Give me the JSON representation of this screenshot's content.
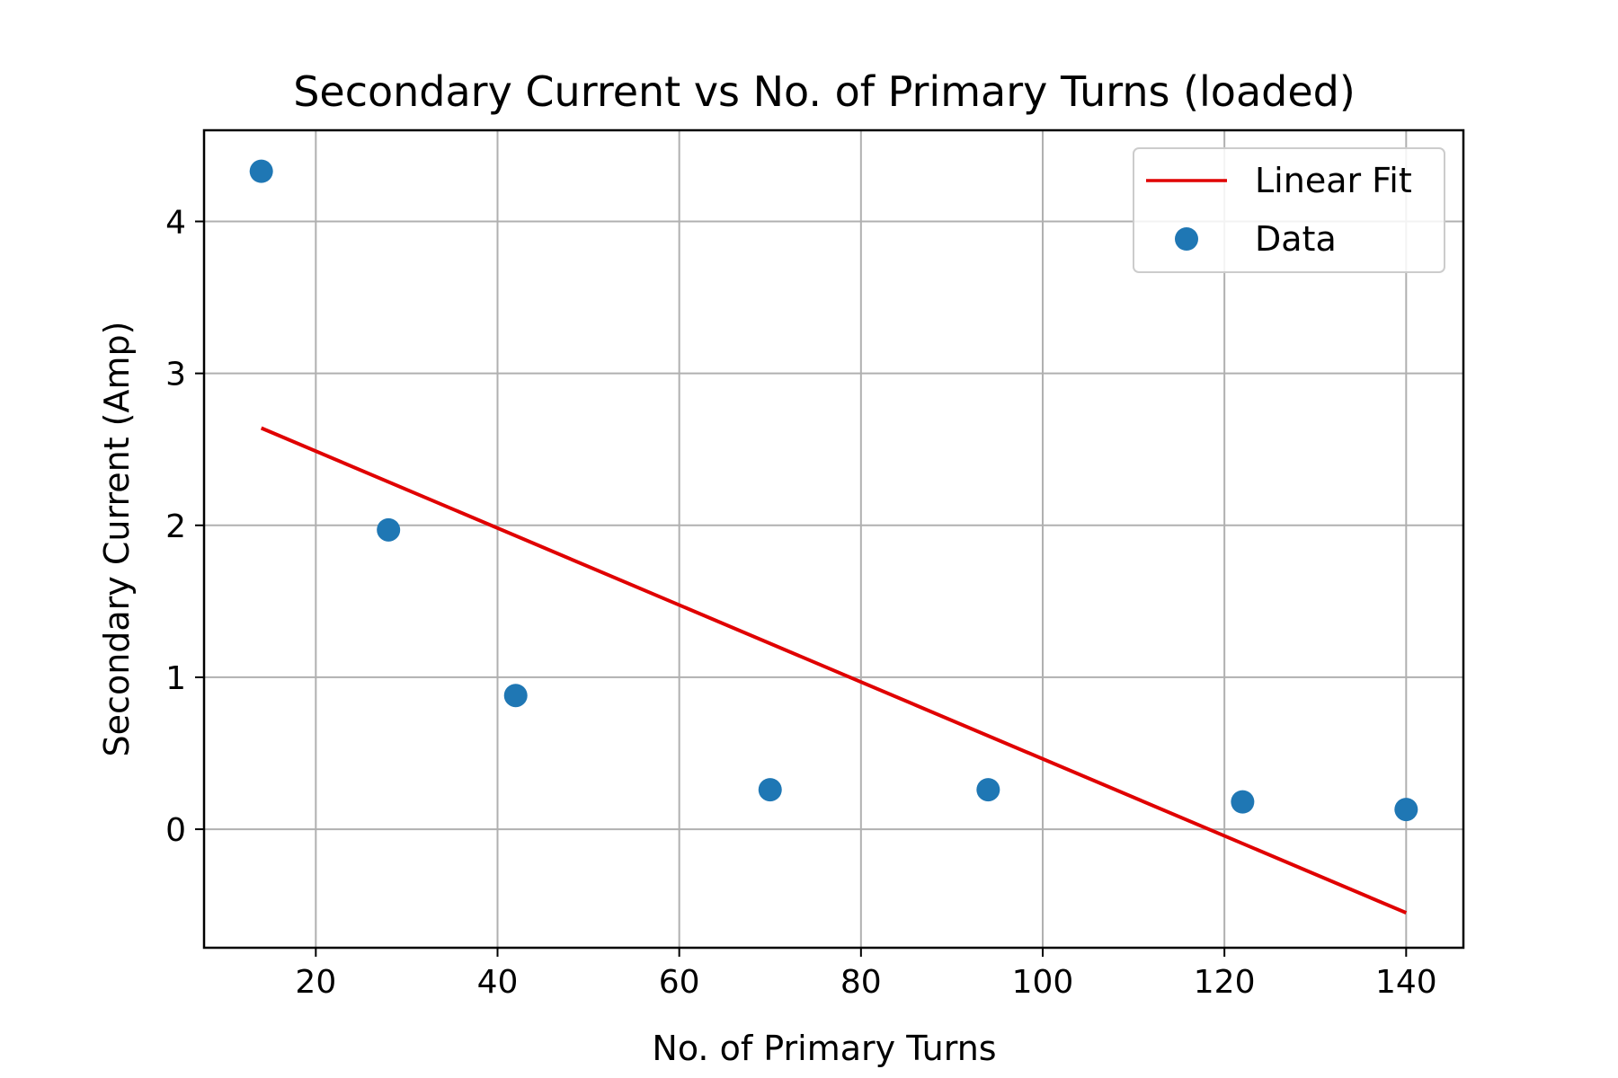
{
  "chart_data": {
    "type": "scatter",
    "title": "Secondary Current vs No. of Primary Turns (loaded)",
    "xlabel": "No. of Primary Turns",
    "ylabel": "Secondary Current (Amp)",
    "xlim": [
      7.7,
      146.3
    ],
    "ylim": [
      -0.78,
      4.6
    ],
    "xticks": [
      20,
      40,
      60,
      80,
      100,
      120,
      140
    ],
    "yticks": [
      0,
      1,
      2,
      3,
      4
    ],
    "grid": true,
    "legend_position": "top-right",
    "series": [
      {
        "name": "Linear Fit",
        "kind": "line",
        "color": "#e00000",
        "x": [
          14,
          140
        ],
        "y": [
          2.64,
          -0.55
        ]
      },
      {
        "name": "Data",
        "kind": "scatter",
        "color": "#1f77b4",
        "x": [
          14,
          28,
          42,
          70,
          94,
          122,
          140
        ],
        "y": [
          4.33,
          1.97,
          0.88,
          0.26,
          0.26,
          0.18,
          0.13
        ]
      }
    ]
  }
}
